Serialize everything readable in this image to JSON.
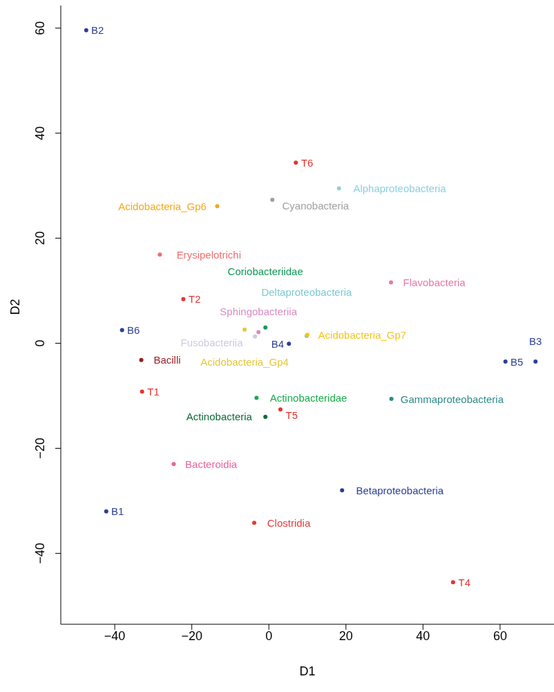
{
  "chart_data": {
    "type": "scatter",
    "xlabel": "D1",
    "ylabel": "D2",
    "marker": "circle",
    "grid": false,
    "legend": false,
    "xlim": [
      -54,
      74
    ],
    "ylim": [
      -53.5,
      64.3
    ],
    "xticks": [
      -40,
      -20,
      0,
      20,
      40,
      60
    ],
    "yticks": [
      -40,
      -20,
      0,
      20,
      40,
      60
    ],
    "series": [
      {
        "name": "B2",
        "color": "#2b3f94",
        "x": [
          -47.4
        ],
        "values": [
          59.6
        ]
      },
      {
        "name": "T6",
        "color": "#e8312f",
        "x": [
          7
        ],
        "values": [
          34.4
        ]
      },
      {
        "name": "Alphaproteobacteria",
        "color": "#8ecfde",
        "x": [
          18.2
        ],
        "values": [
          29.5
        ]
      },
      {
        "name": "Cyanobacteria",
        "color": "#a0a0a0",
        "x": [
          0.9
        ],
        "values": [
          27.3
        ]
      },
      {
        "name": "Acidobacteria_Gp6",
        "color": "#f4a81c",
        "x": [
          -13.4
        ],
        "values": [
          26.1
        ]
      },
      {
        "name": "Erysipelotrichi",
        "color": "#ef6e6e",
        "x": [
          -28.3
        ],
        "values": [
          16.9
        ]
      },
      {
        "name": "Flavobacteria",
        "color": "#e879a8",
        "x": [
          31.7
        ],
        "values": [
          11.6
        ]
      },
      {
        "name": "T2",
        "color": "#e8312f",
        "x": [
          -22.2
        ],
        "values": [
          8.4
        ]
      },
      {
        "name": "B6",
        "color": "#2b3f94",
        "x": [
          -38.1
        ],
        "values": [
          2.5
        ]
      },
      {
        "name": "Acidobacteria_Gp4",
        "color": "#e6c63a",
        "x": [
          -6.3
        ],
        "values": [
          2.6
        ]
      },
      {
        "name": "Sphingobacteriia",
        "color": "#d98cc0",
        "x": [
          -2.7
        ],
        "values": [
          2.1
        ]
      },
      {
        "name": "Fusobacteriia",
        "color": "#d0c8e0",
        "x": [
          -3.6
        ],
        "values": [
          1.3
        ]
      },
      {
        "name": "Deltaproteobacteria",
        "color": "#7ec8d0",
        "x": [
          9.8
        ],
        "values": [
          1.4
        ]
      },
      {
        "name": "Acidobacteria_Gp7",
        "color": "#f5c518",
        "x": [
          10
        ],
        "values": [
          1.6
        ]
      },
      {
        "name": "Coriobacteriidae",
        "color": "#0f9a55",
        "x": [
          -0.9
        ],
        "values": [
          3.0
        ]
      },
      {
        "name": "B4",
        "color": "#2b3f94",
        "x": [
          5.2
        ],
        "values": [
          -0.1
        ]
      },
      {
        "name": "Bacilli",
        "color": "#9a1b1f",
        "x": [
          -33.1
        ],
        "values": [
          -3.2
        ]
      },
      {
        "name": "B5",
        "color": "#2b3f94",
        "x": [
          61.4
        ],
        "values": [
          -3.5
        ]
      },
      {
        "name": "B3",
        "color": "#2b3f94",
        "x": [
          69.2
        ],
        "values": [
          -3.5
        ]
      },
      {
        "name": "T1",
        "color": "#e8312f",
        "x": [
          -32.9
        ],
        "values": [
          -9.2
        ]
      },
      {
        "name": "Actinobacteridae",
        "color": "#1aab4a",
        "x": [
          -3.2
        ],
        "values": [
          -10.4
        ]
      },
      {
        "name": "Gammaproteobacteria",
        "color": "#2e8b89",
        "x": [
          31.8
        ],
        "values": [
          -10.6
        ]
      },
      {
        "name": "T5",
        "color": "#e8312f",
        "x": [
          3.0
        ],
        "values": [
          -12.6
        ]
      },
      {
        "name": "Actinobacteria",
        "color": "#0b6b36",
        "x": [
          -0.9
        ],
        "values": [
          -14
        ]
      },
      {
        "name": "Bacteroidia",
        "color": "#e8649d",
        "x": [
          -24.7
        ],
        "values": [
          -23
        ]
      },
      {
        "name": "Betaproteobacteria",
        "color": "#2b3f94",
        "x": [
          19
        ],
        "values": [
          -28
        ]
      },
      {
        "name": "B1",
        "color": "#2b3f94",
        "x": [
          -42.2
        ],
        "values": [
          -32
        ]
      },
      {
        "name": "Clostridia",
        "color": "#e83a3a",
        "x": [
          -3.8
        ],
        "values": [
          -34.2
        ]
      },
      {
        "name": "T4",
        "color": "#e8312f",
        "x": [
          47.8
        ],
        "values": [
          -45.5
        ]
      }
    ]
  }
}
